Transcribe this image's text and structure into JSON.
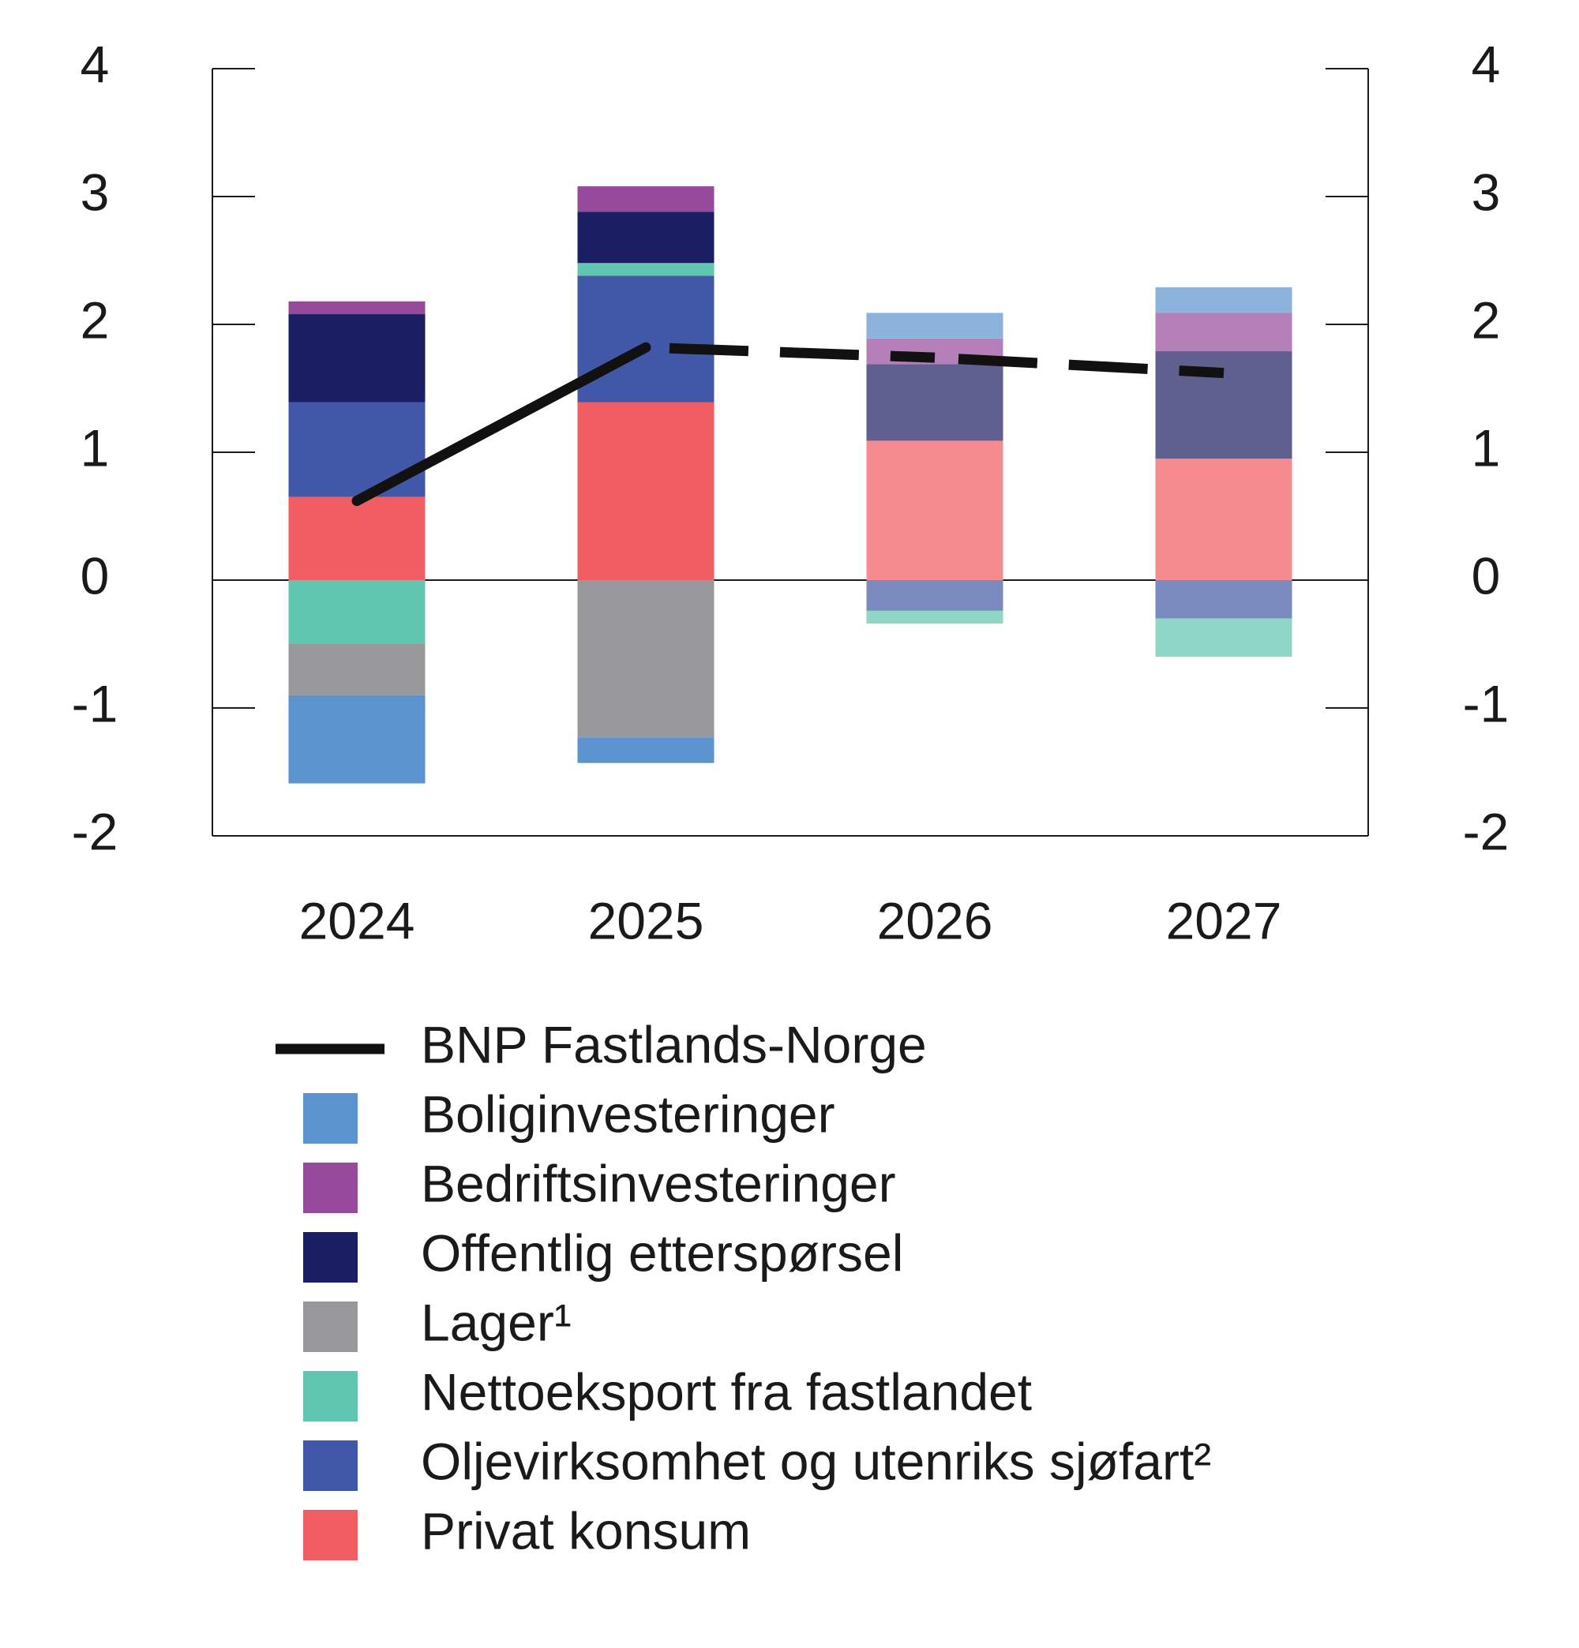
{
  "chart_data": {
    "type": "stacked_bar_line",
    "categories": [
      "2024",
      "2025",
      "2026",
      "2027"
    ],
    "ylim": [
      -2,
      4
    ],
    "yticks": [
      -2,
      -1,
      0,
      1,
      2,
      3,
      4
    ],
    "y2lim": [
      -2,
      4
    ],
    "y2ticks": [
      -2,
      -1,
      0,
      1,
      2,
      3,
      4
    ],
    "line": {
      "name": "BNP Fastlands-Norge",
      "color": "#111111",
      "values": [
        0.62,
        1.82,
        1.74,
        1.62
      ],
      "dashed_segments": [
        false,
        true,
        true
      ]
    },
    "series": [
      {
        "name": "Boliginvesteringer",
        "colors": [
          "#5b93cf",
          "#5b93cf",
          "#8db3dc",
          "#8db3dc"
        ],
        "values": [
          -0.69,
          -0.2,
          0.2,
          0.2
        ]
      },
      {
        "name": "Bedriftsinvesteringer",
        "colors": [
          "#974a9b",
          "#974a9b",
          "#b57fb8",
          "#b57fb8"
        ],
        "values": [
          0.1,
          0.2,
          0.2,
          0.3
        ]
      },
      {
        "name": "Offentlig etterspørsel",
        "colors": [
          "#1b1e63",
          "#1b1e63",
          "#5f6090",
          "#5f6090"
        ],
        "values": [
          0.69,
          0.4,
          0.6,
          0.84
        ]
      },
      {
        "name": "Lager¹",
        "colors": [
          "#99989a",
          "#99989a",
          "#b8b7b9",
          "#b8b7b9"
        ],
        "values": [
          -0.4,
          -1.23,
          0,
          0
        ]
      },
      {
        "name": "Nettoeksport fra fastlandet",
        "colors": [
          "#60c6b0",
          "#60c6b0",
          "#8fd6c6",
          "#8fd6c6"
        ],
        "values": [
          -0.5,
          0.1,
          -0.1,
          -0.3
        ]
      },
      {
        "name": "Oljevirksomhet og utenriks sjøfart²",
        "colors": [
          "#4157a8",
          "#4157a8",
          "#7b8bc0",
          "#7b8bc0"
        ],
        "values": [
          0.74,
          0.99,
          -0.24,
          -0.3
        ]
      },
      {
        "name": "Privat konsum",
        "colors": [
          "#f05e63",
          "#f05e63",
          "#f48b8e",
          "#f48b8e"
        ],
        "values": [
          0.65,
          1.39,
          1.09,
          0.95
        ]
      }
    ]
  }
}
